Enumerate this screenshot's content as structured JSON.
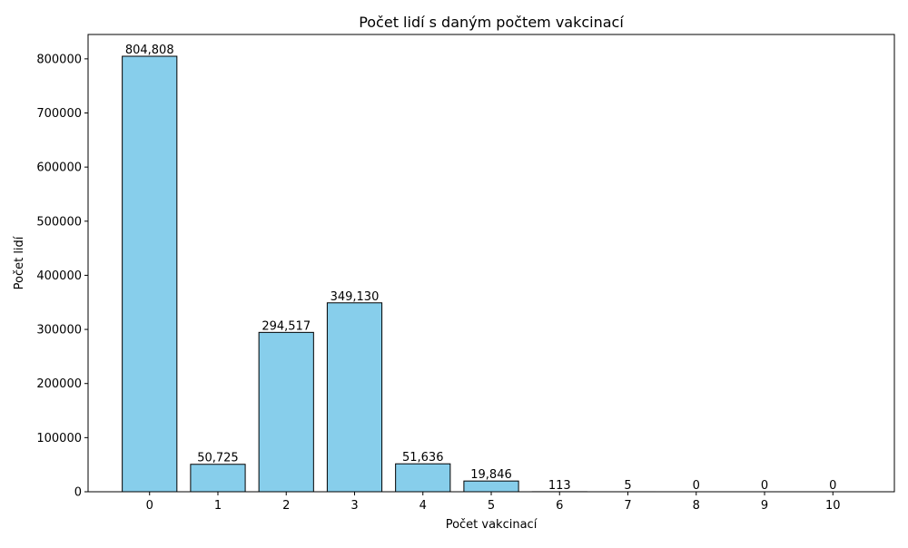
{
  "chart_data": {
    "type": "bar",
    "title": "Počet lidí s daným počtem vakcinací",
    "xlabel": "Počet vakcinací",
    "ylabel": "Počet lidí",
    "categories": [
      "0",
      "1",
      "2",
      "3",
      "4",
      "5",
      "6",
      "7",
      "8",
      "9",
      "10"
    ],
    "values": [
      804808,
      50725,
      294517,
      349130,
      51636,
      19846,
      113,
      5,
      0,
      0,
      0
    ],
    "data_labels": [
      "804,808",
      "50,725",
      "294,517",
      "349,130",
      "51,636",
      "19,846",
      "113",
      "5",
      "0",
      "0",
      "0"
    ],
    "ylim": [
      0,
      845048
    ],
    "yticks": [
      0,
      100000,
      200000,
      300000,
      400000,
      500000,
      600000,
      700000,
      800000
    ],
    "ytick_labels": [
      "0",
      "100000",
      "200000",
      "300000",
      "400000",
      "500000",
      "600000",
      "700000",
      "800000"
    ],
    "grid": false,
    "bar_color": "#87ceeb",
    "bar_edge_color": "#000000"
  }
}
